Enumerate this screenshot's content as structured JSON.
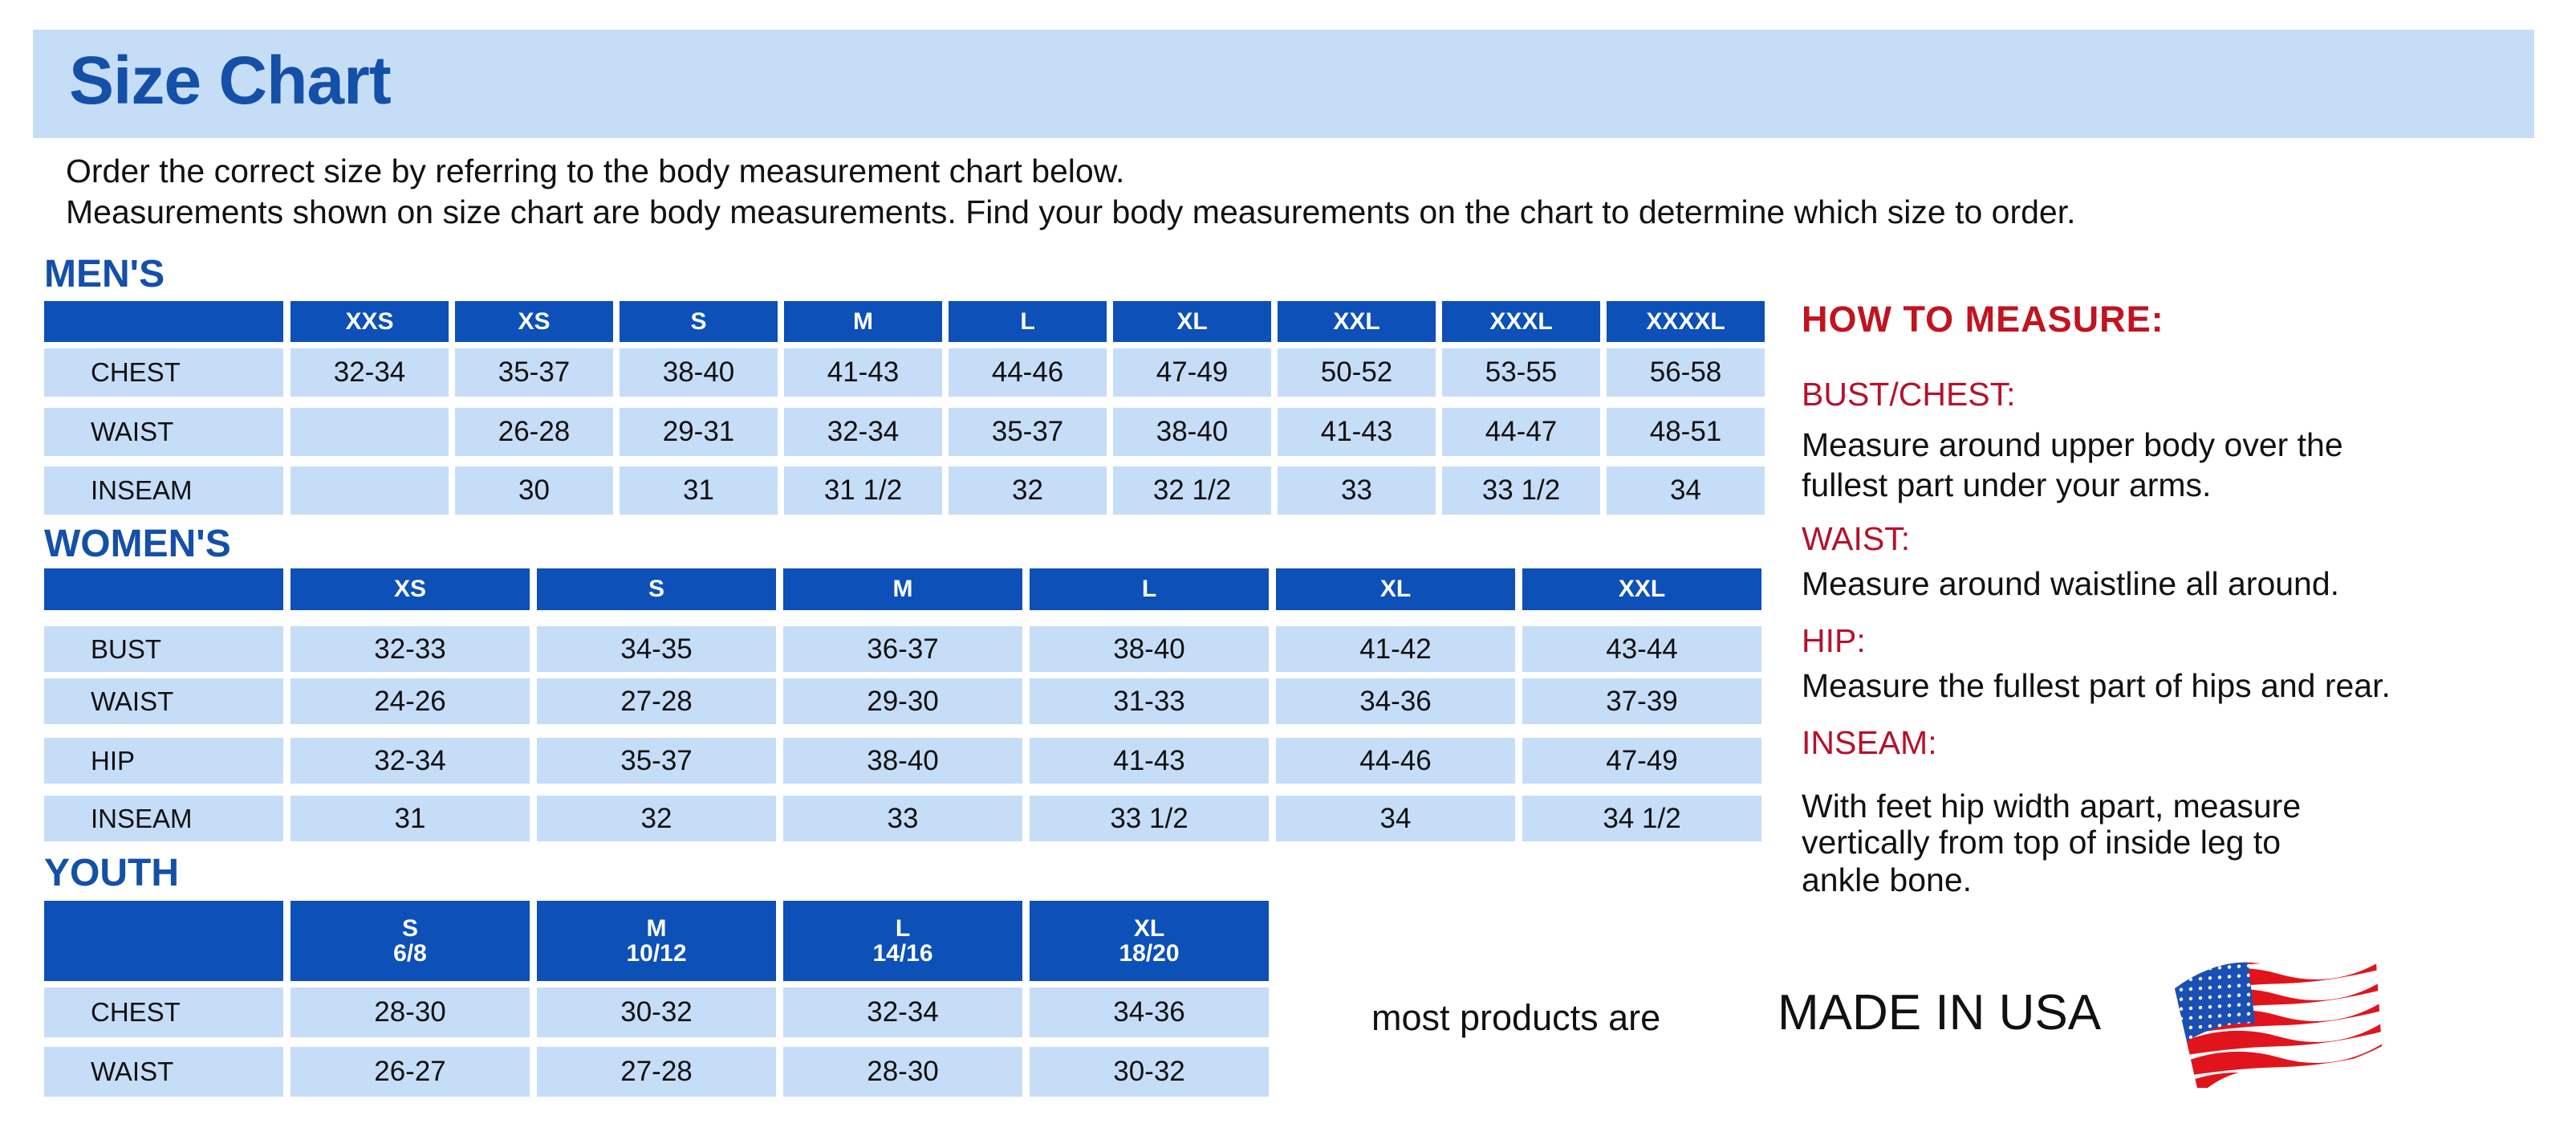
{
  "title": "Size Chart",
  "intro": [
    "Order the correct size by referring to the body measurement chart below.",
    "Measurements shown on size chart are body measurements.  Find your body measurements on the chart to determine which size to order."
  ],
  "colors": {
    "header_blue": "#0c50b8",
    "cell_blue": "#c6ddf8",
    "title_blue": "#1450a8",
    "accent_red": "#b5122b"
  },
  "tables": {
    "mens": {
      "label": "MEN'S",
      "sizes": [
        "XXS",
        "XS",
        "S",
        "M",
        "L",
        "XL",
        "XXL",
        "XXXL",
        "XXXXL"
      ],
      "rows": [
        {
          "label": "CHEST",
          "values": [
            "32-34",
            "35-37",
            "38-40",
            "41-43",
            "44-46",
            "47-49",
            "50-52",
            "53-55",
            "56-58"
          ]
        },
        {
          "label": "WAIST",
          "values": [
            "",
            "26-28",
            "29-31",
            "32-34",
            "35-37",
            "38-40",
            "41-43",
            "44-47",
            "48-51"
          ]
        },
        {
          "label": "INSEAM",
          "values": [
            "",
            "30",
            "31",
            "31 1/2",
            "32",
            "32 1/2",
            "33",
            "33 1/2",
            "34"
          ]
        }
      ]
    },
    "womens": {
      "label": "WOMEN'S",
      "sizes": [
        "XS",
        "S",
        "M",
        "L",
        "XL",
        "XXL"
      ],
      "rows": [
        {
          "label": "BUST",
          "values": [
            "32-33",
            "34-35",
            "36-37",
            "38-40",
            "41-42",
            "43-44"
          ]
        },
        {
          "label": "WAIST",
          "values": [
            "24-26",
            "27-28",
            "29-30",
            "31-33",
            "34-36",
            "37-39"
          ]
        },
        {
          "label": "HIP",
          "values": [
            "32-34",
            "35-37",
            "38-40",
            "41-43",
            "44-46",
            "47-49"
          ]
        },
        {
          "label": "INSEAM",
          "values": [
            "31",
            "32",
            "33",
            "33 1/2",
            "34",
            "34 1/2"
          ]
        }
      ]
    },
    "youth": {
      "label": "YOUTH",
      "sizes": [
        "S\n6/8",
        "M\n10/12",
        "L\n14/16",
        "XL\n18/20"
      ],
      "rows": [
        {
          "label": "CHEST",
          "values": [
            "28-30",
            "30-32",
            "32-34",
            "34-36"
          ]
        },
        {
          "label": "WAIST",
          "values": [
            "26-27",
            "27-28",
            "28-30",
            "30-32"
          ]
        }
      ]
    }
  },
  "how_to_measure": {
    "title": "HOW TO MEASURE:",
    "items": [
      {
        "heading": "BUST/CHEST:",
        "lines": [
          "Measure around upper body over the",
          "fullest part under your arms."
        ]
      },
      {
        "heading": "WAIST:",
        "lines": [
          "Measure around waistline all around."
        ]
      },
      {
        "heading": "HIP:",
        "lines": [
          "Measure the fullest part of hips and rear."
        ]
      },
      {
        "heading": "INSEAM:",
        "lines": [
          "With feet hip width apart, measure",
          "vertically from top of inside leg to",
          "ankle bone."
        ]
      }
    ]
  },
  "made_in_usa": {
    "prefix": "most products are",
    "emphasis": "MADE IN USA",
    "icon": "us-flag-icon"
  }
}
